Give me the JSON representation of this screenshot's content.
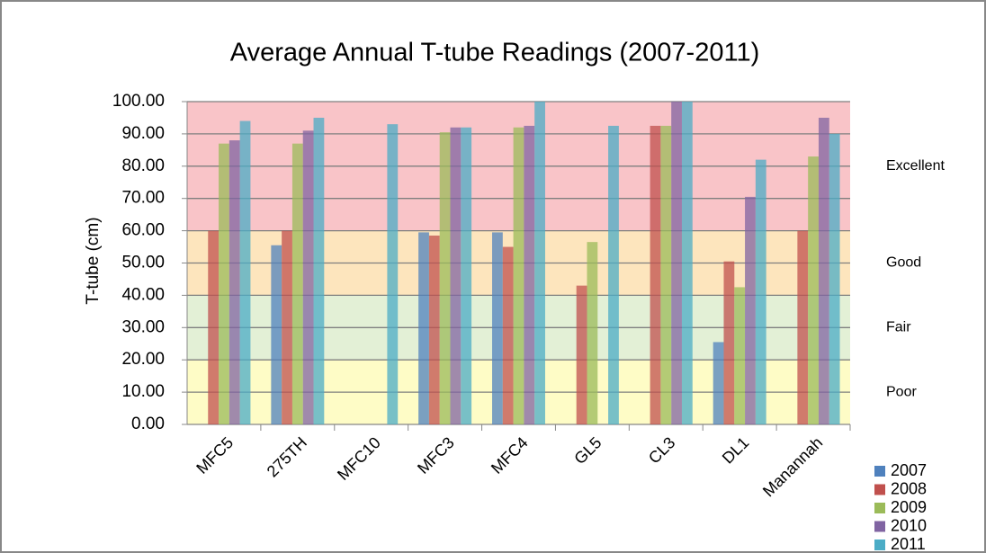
{
  "chart_data": {
    "type": "bar",
    "title": "Average Annual T-tube Readings (2007-2011)",
    "y_label": "T-tube (cm)",
    "categories": [
      "MFC5",
      "275TH",
      "MFC10",
      "MFC3",
      "MFC4",
      "GL5",
      "CL3",
      "DL1",
      "Manannah"
    ],
    "series": [
      {
        "name": "2007",
        "color": "#4f81bd",
        "values": [
          null,
          55.5,
          null,
          59.5,
          59.5,
          null,
          null,
          25.5,
          null
        ]
      },
      {
        "name": "2008",
        "color": "#c0504d",
        "values": [
          60,
          60,
          null,
          58.5,
          55,
          43,
          92.5,
          50.5,
          60
        ]
      },
      {
        "name": "2009",
        "color": "#9bbb59",
        "values": [
          87,
          87,
          null,
          90.5,
          92,
          56.5,
          92.5,
          42.5,
          83
        ]
      },
      {
        "name": "2010",
        "color": "#8064a2",
        "values": [
          88,
          91,
          null,
          92,
          92.5,
          null,
          100,
          70.5,
          95
        ]
      },
      {
        "name": "2011",
        "color": "#4bacc6",
        "values": [
          94,
          95,
          93,
          92,
          100,
          92.5,
          100,
          82,
          90
        ]
      }
    ],
    "bands": [
      {
        "label": "Excellent",
        "from": 60,
        "to": 100,
        "color": "#f9c4c8"
      },
      {
        "label": "Good",
        "from": 40,
        "to": 60,
        "color": "#fde5bd"
      },
      {
        "label": "Fair",
        "from": 20,
        "to": 40,
        "color": "#e3f0d6"
      },
      {
        "label": "Poor",
        "from": 0,
        "to": 20,
        "color": "#fefcc6"
      }
    ],
    "ylim": [
      0,
      100
    ],
    "yticks": [
      {
        "value": 0,
        "label": "0.00"
      },
      {
        "value": 10,
        "label": "10.00"
      },
      {
        "value": 20,
        "label": "20.00"
      },
      {
        "value": 30,
        "label": "30.00"
      },
      {
        "value": 40,
        "label": "40.00"
      },
      {
        "value": 50,
        "label": "50.00"
      },
      {
        "value": 60,
        "label": "60.00"
      },
      {
        "value": 70,
        "label": "70.00"
      },
      {
        "value": 80,
        "label": "80.00"
      },
      {
        "value": 90,
        "label": "90.00"
      },
      {
        "value": 100,
        "label": "100.00"
      }
    ],
    "grid": true
  }
}
